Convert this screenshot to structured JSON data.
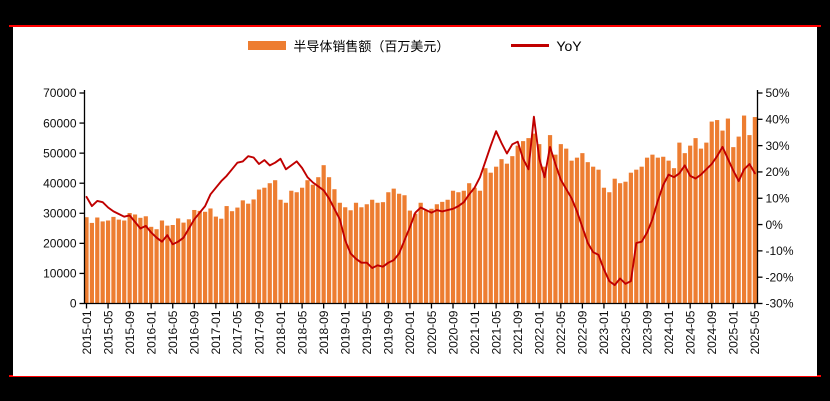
{
  "page": {
    "background_color": "#000000",
    "card_color": "#ffffff",
    "divider_color": "#fe0000"
  },
  "legend": {
    "bars_label": "半导体销售额（百万美元）",
    "line_label": "YoY",
    "bar_color": "#ED7D31",
    "line_color": "#C00000",
    "position": "top-center"
  },
  "chart_data": {
    "type": "bar+line-combo",
    "title": "",
    "grid": "off",
    "x": [
      "2015-01",
      "2015-02",
      "2015-03",
      "2015-04",
      "2015-05",
      "2015-06",
      "2015-07",
      "2015-08",
      "2015-09",
      "2015-10",
      "2015-11",
      "2015-12",
      "2016-01",
      "2016-02",
      "2016-03",
      "2016-04",
      "2016-05",
      "2016-06",
      "2016-07",
      "2016-08",
      "2016-09",
      "2016-10",
      "2016-11",
      "2016-12",
      "2017-01",
      "2017-02",
      "2017-03",
      "2017-04",
      "2017-05",
      "2017-06",
      "2017-07",
      "2017-08",
      "2017-09",
      "2017-10",
      "2017-11",
      "2017-12",
      "2018-01",
      "2018-02",
      "2018-03",
      "2018-04",
      "2018-05",
      "2018-06",
      "2018-07",
      "2018-08",
      "2018-09",
      "2018-10",
      "2018-11",
      "2018-12",
      "2019-01",
      "2019-02",
      "2019-03",
      "2019-04",
      "2019-05",
      "2019-06",
      "2019-07",
      "2019-08",
      "2019-09",
      "2019-10",
      "2019-11",
      "2019-12",
      "2020-01",
      "2020-02",
      "2020-03",
      "2020-04",
      "2020-05",
      "2020-06",
      "2020-07",
      "2020-08",
      "2020-09",
      "2020-10",
      "2020-11",
      "2020-12",
      "2021-01",
      "2021-02",
      "2021-03",
      "2021-04",
      "2021-05",
      "2021-06",
      "2021-07",
      "2021-08",
      "2021-09",
      "2021-10",
      "2021-11",
      "2021-12",
      "2022-01",
      "2022-02",
      "2022-03",
      "2022-04",
      "2022-05",
      "2022-06",
      "2022-07",
      "2022-08",
      "2022-09",
      "2022-10",
      "2022-11",
      "2022-12",
      "2023-01",
      "2023-02",
      "2023-03",
      "2023-04",
      "2023-05",
      "2023-06",
      "2023-07",
      "2023-08",
      "2023-09",
      "2023-10",
      "2023-11",
      "2023-12",
      "2024-01",
      "2024-02",
      "2024-03",
      "2024-04",
      "2024-05",
      "2024-06",
      "2024-07",
      "2024-08",
      "2024-09",
      "2024-10",
      "2024-11",
      "2024-12",
      "2025-01",
      "2025-02",
      "2025-03",
      "2025-04",
      "2025-05"
    ],
    "x_tick_every": 4,
    "series": [
      {
        "name": "半导体销售额（百万美元）",
        "type": "bar",
        "axis": "left",
        "color": "#ED7D31",
        "values": [
          28700,
          26800,
          28600,
          27300,
          27600,
          28800,
          27900,
          27600,
          30100,
          29600,
          28500,
          29000,
          25500,
          24700,
          27600,
          25900,
          26100,
          28300,
          26900,
          28000,
          31100,
          30800,
          30500,
          31600,
          28900,
          28200,
          32400,
          30700,
          31900,
          34300,
          33200,
          34600,
          37900,
          38500,
          40000,
          41000,
          34500,
          33500,
          37500,
          37000,
          38500,
          41000,
          39500,
          42000,
          46000,
          42000,
          38000,
          33500,
          32000,
          31000,
          33500,
          32000,
          33000,
          34500,
          33500,
          33700,
          37000,
          38200,
          36500,
          36000,
          30900,
          29900,
          33500,
          31000,
          31500,
          33000,
          33800,
          34500,
          37500,
          37000,
          37500,
          40000,
          38500,
          37500,
          45000,
          43500,
          45500,
          48000,
          46500,
          49000,
          52500,
          54000,
          55000,
          56500,
          53000,
          45500,
          56000,
          49500,
          53000,
          51500,
          47500,
          48500,
          50000,
          47000,
          45500,
          44500,
          38500,
          37000,
          41500,
          40000,
          40500,
          43500,
          44500,
          45500,
          48500,
          49500,
          48500,
          48800,
          47500,
          45000,
          53500,
          50000,
          52500,
          55000,
          51500,
          53500,
          60500,
          61000,
          57500,
          61500,
          52000,
          55500,
          62500,
          56000,
          62000
        ]
      },
      {
        "name": "YoY",
        "type": "line",
        "axis": "right",
        "unit": "%",
        "color": "#C00000",
        "values": [
          10.5,
          7,
          9,
          8.5,
          6.5,
          5,
          4,
          3,
          3.5,
          1,
          -1.5,
          -0.5,
          -3,
          -5,
          -6.5,
          -4,
          -7.5,
          -6.5,
          -5,
          -1.5,
          2,
          4.5,
          7,
          11.5,
          14,
          16.5,
          18.5,
          21,
          23.5,
          24,
          26,
          25.5,
          23,
          24.5,
          22.5,
          23.5,
          25,
          21,
          22.5,
          24,
          21.5,
          18,
          16,
          14.5,
          13,
          10,
          6,
          2,
          -6,
          -11,
          -13,
          -14.5,
          -14.5,
          -16.5,
          -15.5,
          -16,
          -14.5,
          -13.5,
          -11,
          -6,
          -1,
          4.5,
          6.5,
          5.5,
          4.5,
          5.5,
          5,
          5.5,
          6,
          7,
          8.5,
          11.5,
          14,
          18,
          24,
          30,
          35.5,
          31,
          27,
          30.5,
          31.5,
          25,
          21,
          41,
          25,
          18,
          29.5,
          23,
          17,
          13.5,
          10,
          5,
          -1,
          -7,
          -10.5,
          -11.5,
          -17,
          -21.5,
          -23,
          -20.5,
          -22.5,
          -21.5,
          -7,
          -6.5,
          -3,
          2,
          9,
          15,
          19,
          18,
          19.5,
          22.5,
          18.5,
          17.5,
          19,
          21,
          23,
          26,
          29.5,
          25,
          20.5,
          16.5,
          21,
          23,
          19.5
        ]
      }
    ],
    "left_axis": {
      "min": 0,
      "max": 70000,
      "step": 10000,
      "tick_labels": [
        "70000",
        "60000",
        "50000",
        "40000",
        "30000",
        "20000",
        "10000",
        "0"
      ]
    },
    "right_axis": {
      "min": -30,
      "max": 50,
      "step": 10,
      "tick_labels": [
        "50%",
        "40%",
        "30%",
        "20%",
        "10%",
        "0%",
        "-10%",
        "-20%",
        "-30%"
      ]
    }
  }
}
